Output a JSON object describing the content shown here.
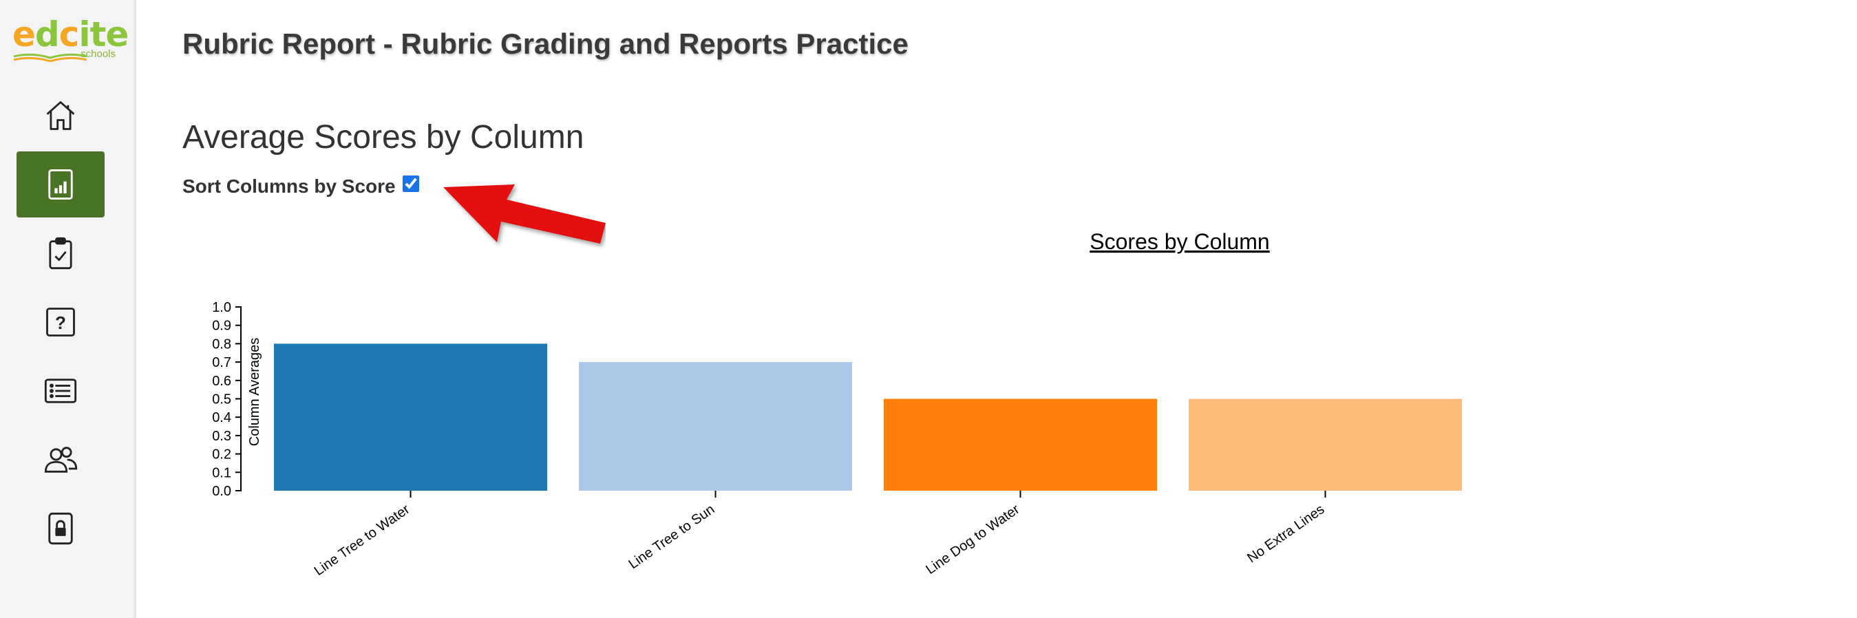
{
  "brand": {
    "logo_word": "edcite",
    "logo_sub": "schools",
    "colors": {
      "e": "#f5a623",
      "d": "#8cc63f",
      "c": "#f5a623",
      "i": "#8cc63f",
      "t": "#8cc63f",
      "e2": "#8cc63f"
    }
  },
  "sidebar": {
    "accent": "#4a7425",
    "items": [
      {
        "icon": "home-icon",
        "active": false
      },
      {
        "icon": "report-chart-icon",
        "active": true
      },
      {
        "icon": "clipboard-check-icon",
        "active": false
      },
      {
        "icon": "question-icon",
        "active": false
      },
      {
        "icon": "list-icon",
        "active": false
      },
      {
        "icon": "users-icon",
        "active": false
      },
      {
        "icon": "lock-icon",
        "active": false
      }
    ]
  },
  "header": {
    "title": "Rubric Report - Rubric Grading and Reports Practice"
  },
  "section": {
    "title": "Average Scores by Column",
    "sort_label": "Sort Columns by Score",
    "sort_checked": true
  },
  "annotation": {
    "icon": "red-arrow-icon",
    "color": "#e40f0f"
  },
  "chart_data": {
    "type": "bar",
    "title": "Scores by Column",
    "ylabel": "Column Averages",
    "xlabel": "",
    "ylim": [
      0,
      1.0
    ],
    "yticks": [
      "0.0",
      "0.1",
      "0.2",
      "0.3",
      "0.4",
      "0.5",
      "0.6",
      "0.7",
      "0.8",
      "0.9",
      "1.0"
    ],
    "categories": [
      "Line Tree to Water",
      "Line Tree to Sun",
      "Line Dog to Water",
      "No Extra Lines"
    ],
    "values": [
      0.8,
      0.7,
      0.5,
      0.5
    ],
    "colors": [
      "#1f77b4",
      "#aec7e8",
      "#ff7f0e",
      "#ffbb78"
    ],
    "grid": false,
    "legend": "none"
  }
}
